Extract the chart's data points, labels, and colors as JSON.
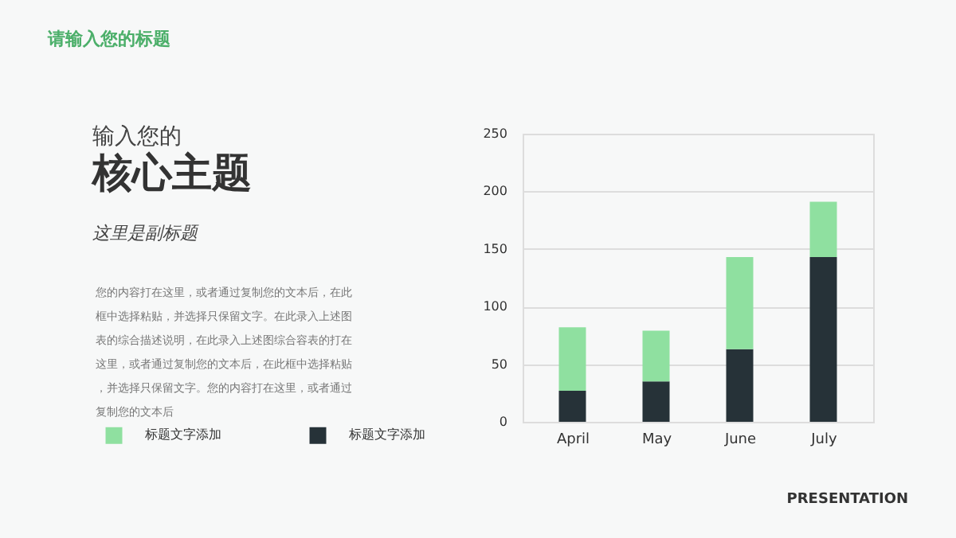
{
  "chart_data": {
    "type": "bar",
    "stacked": true,
    "title": "请输入您的标题",
    "subtitle": "这里是副标题",
    "annotations": [
      "输入您的",
      "核心主题",
      "您的内容打在这里，或者通过复制您的文本后，在此框中选择粘贴，并选择只保留文字。在此录入上述图表的综合描述说明，在此录入上述图综合容表的打在这里，或者通过复制您的文本后，在此框中选择粘贴，并选择只保留文字。您的内容打在这里，或者通过复制您的文本后",
      "PRESENTATION"
    ],
    "categories": [
      "April",
      "May",
      "June",
      "July"
    ],
    "series": [
      {
        "name": "标题文字添加",
        "color": "#263238",
        "values": [
          27,
          35,
          63,
          143
        ]
      },
      {
        "name": "标题文字添加",
        "color": "#8fe0a0",
        "values": [
          55,
          44,
          80,
          48
        ]
      }
    ],
    "ylim": [
      0,
      250
    ],
    "yticks": [
      0,
      50,
      100,
      150,
      200,
      250
    ],
    "grid": "y",
    "legend": "left"
  }
}
